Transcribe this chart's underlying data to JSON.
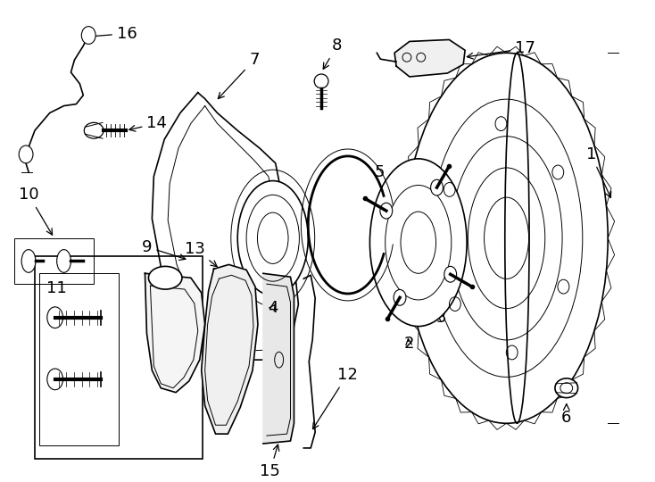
{
  "background_color": "#ffffff",
  "line_color": "#000000",
  "label_color": "#000000",
  "fig_width": 7.34,
  "fig_height": 5.4,
  "dpi": 100,
  "label_fontsize": 13
}
